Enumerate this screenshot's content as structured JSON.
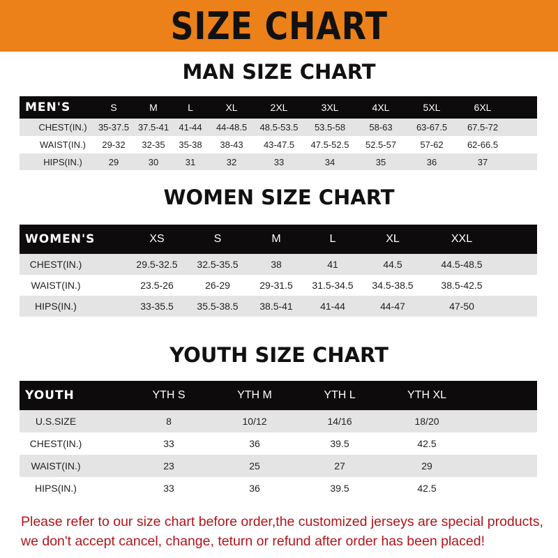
{
  "banner_title": "SIZE CHART",
  "colors": {
    "banner": "#ec8019",
    "header_row": "#0d0b0b",
    "note_text": "#b0151b"
  },
  "men": {
    "title": "MAN SIZE CHART",
    "headers": [
      "MEN'S",
      "S",
      "M",
      "L",
      "XL",
      "2XL",
      "3XL",
      "4XL",
      "5XL",
      "6XL"
    ],
    "rows": [
      [
        "CHEST(IN.)",
        "35-37.5",
        "37.5-41",
        "41-44",
        "44-48.5",
        "48.5-53.5",
        "53.5-58",
        "58-63",
        "63-67.5",
        "67.5-72"
      ],
      [
        "WAIST(IN.)",
        "29-32",
        "32-35",
        "35-38",
        "38-43",
        "43-47.5",
        "47.5-52.5",
        "52.5-57",
        "57-62",
        "62-66.5"
      ],
      [
        "HIPS(IN.)",
        "29",
        "30",
        "31",
        "32",
        "33",
        "34",
        "35",
        "36",
        "37"
      ]
    ]
  },
  "women": {
    "title": "WOMEN SIZE CHART",
    "headers": [
      "WOMEN'S",
      "XS",
      "S",
      "M",
      "L",
      "XL",
      "XXL"
    ],
    "rows": [
      [
        "CHEST(IN.)",
        "29.5-32.5",
        "32.5-35.5",
        "38",
        "41",
        "44.5",
        "44.5-48.5"
      ],
      [
        "WAIST(IN.)",
        "23.5-26",
        "26-29",
        "29-31.5",
        "31.5-34.5",
        "34.5-38.5",
        "38.5-42.5"
      ],
      [
        "HIPS(IN.)",
        "33-35.5",
        "35.5-38.5",
        "38.5-41",
        "41-44",
        "44-47",
        "47-50"
      ]
    ]
  },
  "youth": {
    "title": "YOUTH SIZE CHART",
    "headers": [
      "YOUTH",
      "YTH S",
      "YTH M",
      "YTH L",
      "YTH XL"
    ],
    "rows": [
      [
        "U.S.SIZE",
        "8",
        "10/12",
        "14/16",
        "18/20"
      ],
      [
        "CHEST(IN.)",
        "33",
        "36",
        "39.5",
        "42.5"
      ],
      [
        "WAIST(IN.)",
        "23",
        "25",
        "27",
        "29"
      ],
      [
        "HIPS(IN.)",
        "33",
        "36",
        "39.5",
        "42.5"
      ]
    ]
  },
  "note": {
    "line1": "Please refer to our size chart before order,the customized jerseys are special products,",
    "line2": "we don't accept cancel, change, teturn or refund after order has been placed!"
  }
}
